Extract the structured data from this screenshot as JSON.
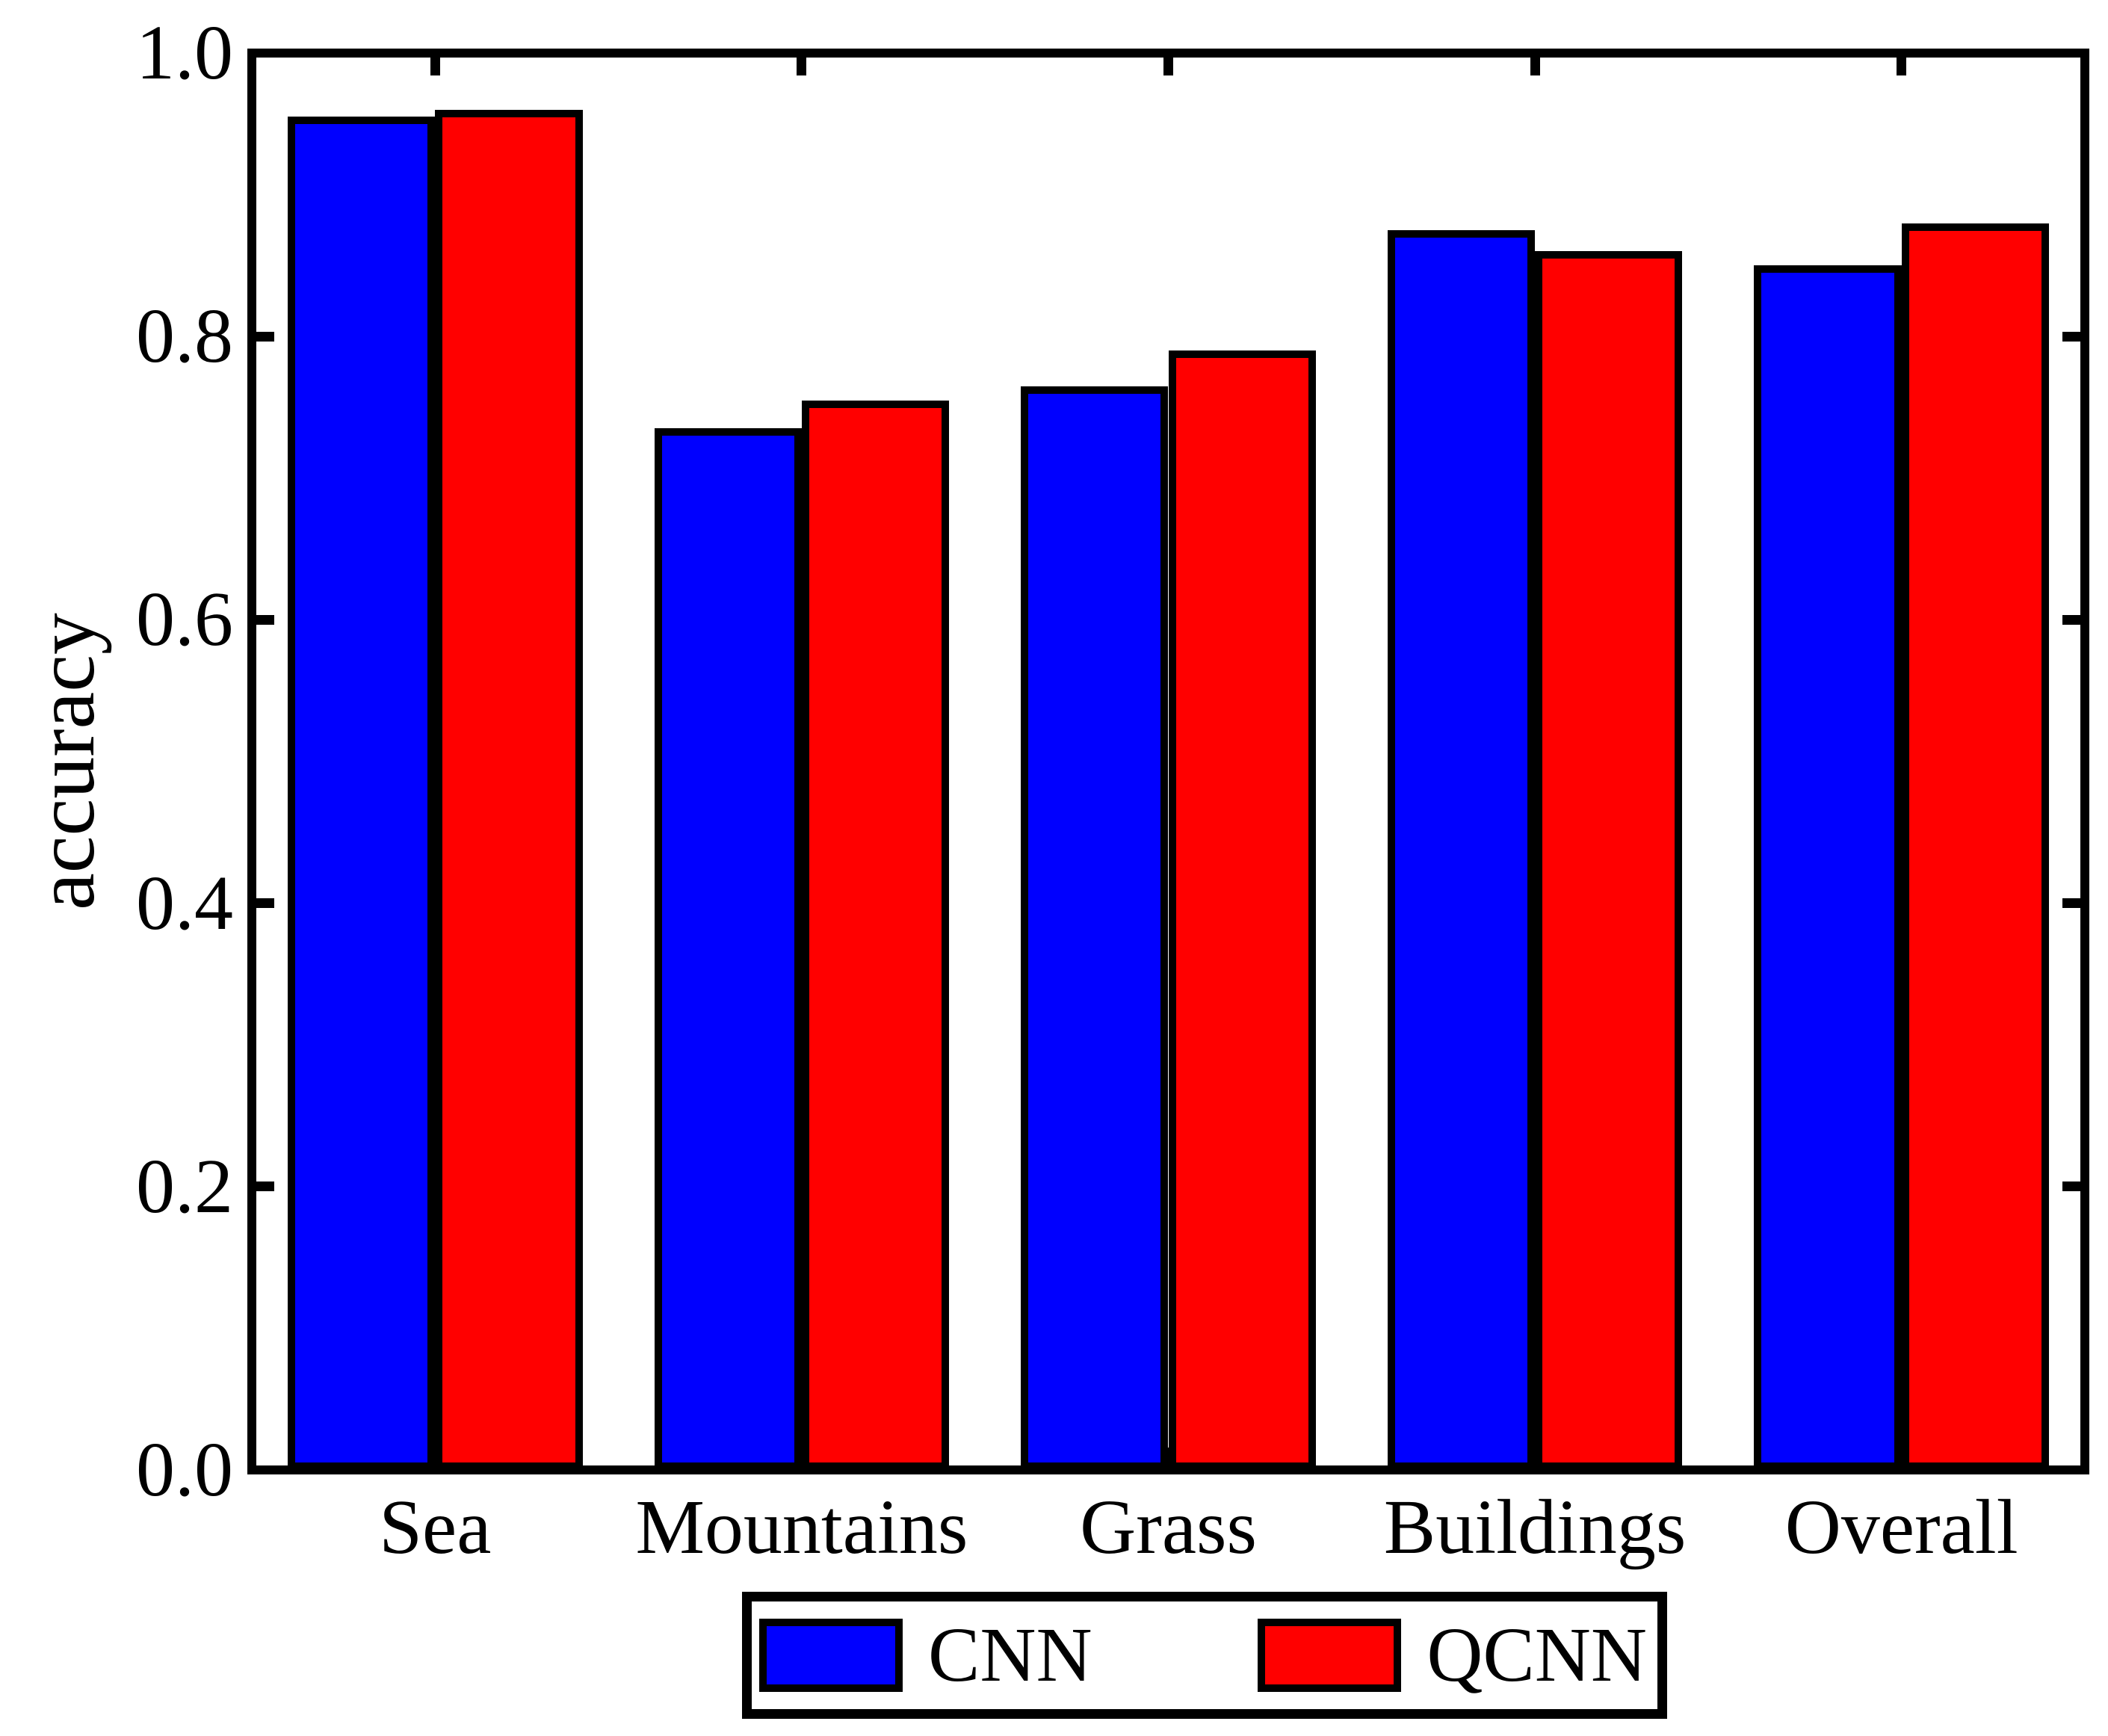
{
  "figure": {
    "background": "#ffffff",
    "axis_color": "#000000"
  },
  "chart_data": {
    "type": "bar",
    "title": "",
    "categories": [
      "Sea",
      "Mountains",
      "Grass",
      "Buildings",
      "Overall"
    ],
    "series": [
      {
        "name": "CNN",
        "color": "#0000ff",
        "values": [
          0.955,
          0.735,
          0.765,
          0.875,
          0.85
        ]
      },
      {
        "name": "QCNN",
        "color": "#ff0000",
        "values": [
          0.96,
          0.755,
          0.79,
          0.86,
          0.88
        ]
      }
    ],
    "xlabel": "",
    "ylabel": "accuracy",
    "ylim": [
      0.0,
      1.0
    ],
    "yticks": [
      0.0,
      0.2,
      0.4,
      0.6,
      0.8,
      1.0
    ],
    "ytick_labels": [
      "0.0",
      "0.2",
      "0.4",
      "0.6",
      "0.8",
      "1.0"
    ],
    "grid": false,
    "bar_edge_color": "#000000",
    "legend": {
      "position": "bottom-center",
      "entries": [
        "CNN",
        "QCNN"
      ]
    }
  }
}
